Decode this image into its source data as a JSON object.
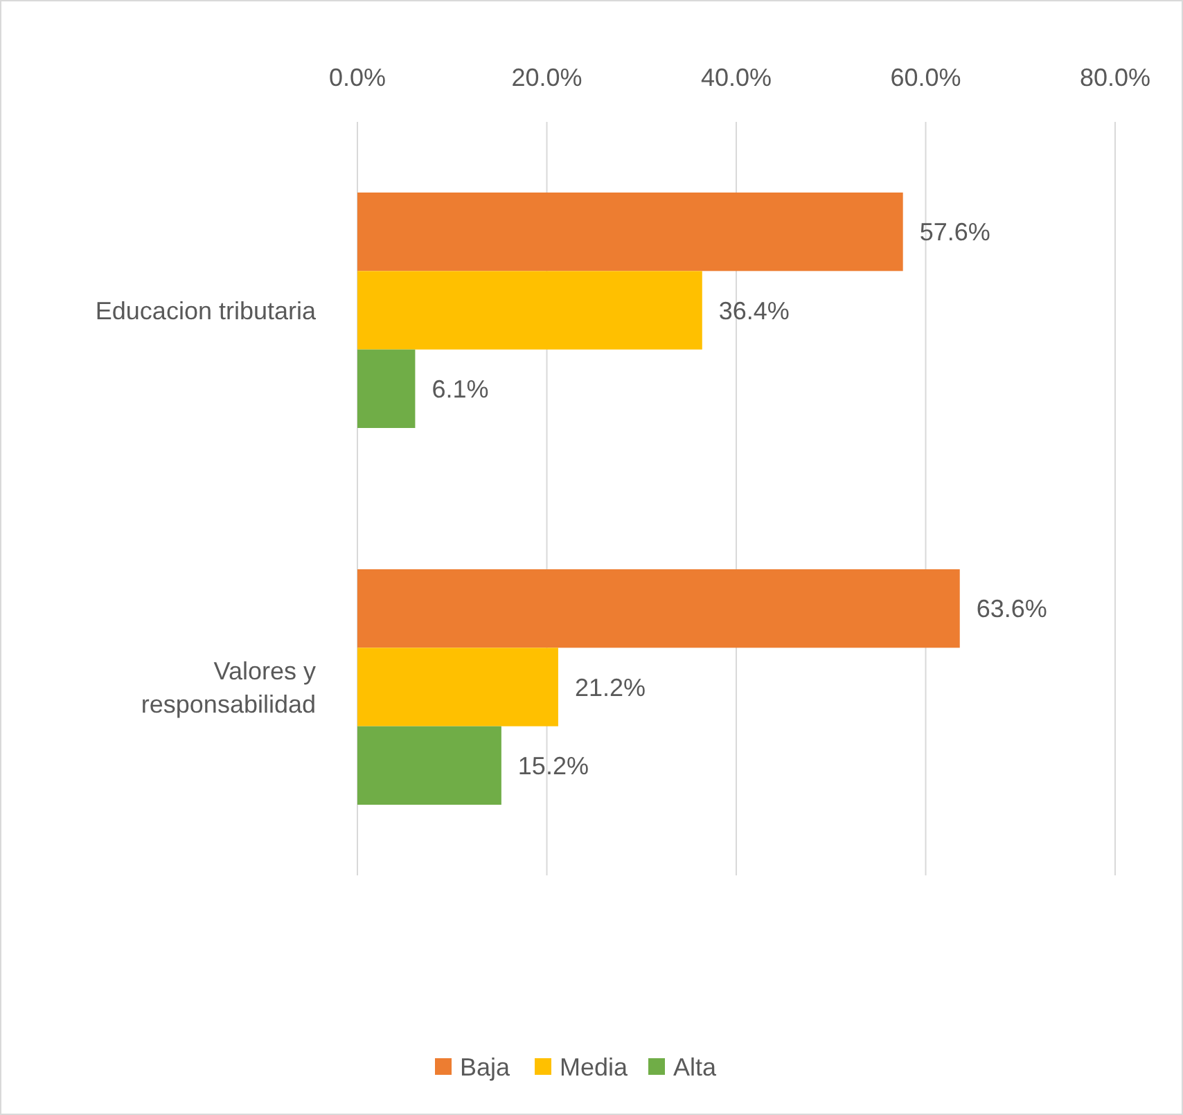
{
  "chart_data": {
    "type": "bar",
    "orientation": "horizontal",
    "categories": [
      "Educacion tributaria",
      "Valores y responsabilidad"
    ],
    "series": [
      {
        "name": "Baja",
        "color": "#ed7d31",
        "values": [
          57.6,
          63.6
        ],
        "value_labels": [
          "57.6%",
          "63.6%"
        ]
      },
      {
        "name": "Media",
        "color": "#ffc000",
        "values": [
          36.4,
          21.2
        ],
        "value_labels": [
          "36.4%",
          "21.2%"
        ]
      },
      {
        "name": "Alta",
        "color": "#70ad47",
        "values": [
          6.1,
          15.2
        ],
        "value_labels": [
          "6.1%",
          "15.2%"
        ]
      }
    ],
    "xlim": [
      0,
      80
    ],
    "xticks": [
      {
        "value": 0,
        "label": "0.0%"
      },
      {
        "value": 20,
        "label": "20.0%"
      },
      {
        "value": 40,
        "label": "40.0%"
      },
      {
        "value": 60,
        "label": "60.0%"
      },
      {
        "value": 80,
        "label": "80.0%"
      }
    ],
    "grid": "x",
    "legend": "bottom"
  }
}
